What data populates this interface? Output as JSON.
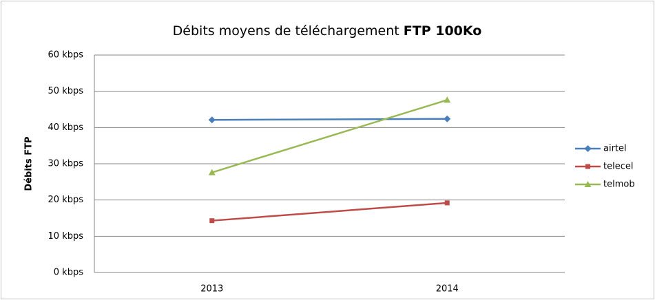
{
  "chart_data": {
    "type": "line",
    "title": [
      "Débits moyens de téléchargement",
      "FTP 100Ko"
    ],
    "ylabel": "Débits FTP",
    "categories": [
      "2013",
      "2014"
    ],
    "series": [
      {
        "name": "airtel",
        "color": "#4a7ebb",
        "marker": "diamond",
        "values": [
          42.1,
          42.4
        ]
      },
      {
        "name": "telecel",
        "color": "#be4b48",
        "marker": "square",
        "values": [
          14.3,
          19.2
        ]
      },
      {
        "name": "telmob",
        "color": "#98b954",
        "marker": "triangle",
        "values": [
          27.6,
          47.6
        ]
      }
    ],
    "ylim": [
      0,
      60
    ],
    "yticks": [
      {
        "value": 0,
        "label": "0 kbps"
      },
      {
        "value": 10,
        "label": "10 kbps"
      },
      {
        "value": 20,
        "label": "20 kbps"
      },
      {
        "value": 30,
        "label": "30 kbps"
      },
      {
        "value": 40,
        "label": "40 kbps"
      },
      {
        "value": 50,
        "label": "50 kbps"
      },
      {
        "value": 60,
        "label": "60 kbps"
      }
    ],
    "grid": true,
    "legend": "right"
  }
}
